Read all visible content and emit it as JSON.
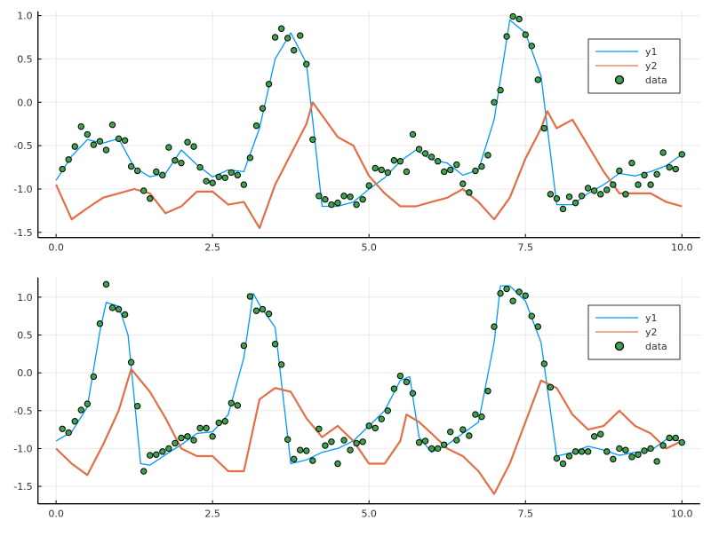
{
  "colors": {
    "y1": "#009af9",
    "y2": "#e26f46",
    "data": "#3da44d",
    "grid": "#ebebeb",
    "axis": "#000000"
  },
  "chart_data": [
    {
      "type": "line+scatter",
      "xlim": [
        -0.29,
        10.29
      ],
      "ylim": [
        -1.56,
        1.05
      ],
      "grid": true,
      "legend_placement": "top-right",
      "xticks": [
        0,
        2.5,
        5,
        7.5,
        10
      ],
      "xtick_labels": [
        "0.0",
        "2.5",
        "5.0",
        "7.5",
        "10.0"
      ],
      "yticks": [
        -1.5,
        -1.0,
        -0.5,
        0.0,
        0.5,
        1.0
      ],
      "ytick_labels": [
        "-1.5",
        "-1.0",
        "-0.5",
        "0.0",
        "0.5",
        "1.0"
      ],
      "legend": [
        "y1",
        "y2",
        "data"
      ],
      "series": [
        {
          "name": "y1",
          "type": "line",
          "x": [
            0,
            0.25,
            0.5,
            0.75,
            1.0,
            1.25,
            1.5,
            1.75,
            2.0,
            2.25,
            2.5,
            2.75,
            3.0,
            3.25,
            3.5,
            3.75,
            4.0,
            4.25,
            4.5,
            4.75,
            5.0,
            5.25,
            5.5,
            5.75,
            6.0,
            6.25,
            6.5,
            6.75,
            7.0,
            7.25,
            7.5,
            7.75,
            8.0,
            8.25,
            8.5,
            8.75,
            9.0,
            9.25,
            9.5,
            9.75,
            10.0
          ],
          "y": [
            -0.9,
            -0.62,
            -0.43,
            -0.47,
            -0.42,
            -0.75,
            -0.86,
            -0.82,
            -0.55,
            -0.72,
            -0.86,
            -0.78,
            -0.8,
            -0.3,
            0.5,
            0.8,
            0.45,
            -1.2,
            -1.2,
            -1.15,
            -1.0,
            -0.87,
            -0.68,
            -0.55,
            -0.66,
            -0.7,
            -0.84,
            -0.78,
            -0.2,
            0.95,
            0.8,
            0.3,
            -1.18,
            -1.18,
            -1.05,
            -0.95,
            -0.82,
            -0.85,
            -0.8,
            -0.73,
            -0.6
          ]
        },
        {
          "name": "y2",
          "type": "line",
          "x": [
            0,
            0.25,
            0.5,
            0.75,
            1.0,
            1.25,
            1.5,
            1.75,
            2.0,
            2.25,
            2.5,
            2.75,
            3.0,
            3.25,
            3.5,
            3.75,
            4.0,
            4.1,
            4.25,
            4.5,
            4.75,
            5.0,
            5.25,
            5.5,
            5.75,
            6.0,
            6.25,
            6.5,
            6.75,
            7.0,
            7.25,
            7.5,
            7.75,
            7.85,
            8.0,
            8.25,
            8.5,
            8.75,
            9.0,
            9.25,
            9.5,
            9.75,
            10.0
          ],
          "y": [
            -0.95,
            -1.35,
            -1.22,
            -1.1,
            -1.05,
            -1.0,
            -1.05,
            -1.28,
            -1.2,
            -1.03,
            -1.03,
            -1.18,
            -1.15,
            -1.45,
            -0.95,
            -0.6,
            -0.25,
            0.0,
            -0.15,
            -0.4,
            -0.5,
            -0.85,
            -1.05,
            -1.2,
            -1.2,
            -1.15,
            -1.1,
            -1.0,
            -1.15,
            -1.35,
            -1.1,
            -0.65,
            -0.3,
            -0.1,
            -0.3,
            -0.2,
            -0.5,
            -0.8,
            -1.05,
            -1.05,
            -1.05,
            -1.15,
            -1.2
          ]
        },
        {
          "name": "data",
          "type": "scatter",
          "y": [
            -0.77,
            -0.66,
            -0.51,
            -0.28,
            -0.37,
            -0.49,
            -0.45,
            -0.55,
            -0.26,
            -0.42,
            -0.44,
            -0.74,
            -0.79,
            -1.02,
            -1.11,
            -0.8,
            -0.84,
            -0.52,
            -0.67,
            -0.7,
            -0.46,
            -0.51,
            -0.75,
            -0.91,
            -0.93,
            -0.86,
            -0.87,
            -0.81,
            -0.84,
            -0.95,
            -0.64,
            -0.27,
            -0.07,
            0.21,
            0.75,
            0.85,
            0.74,
            0.6,
            0.77,
            0.44,
            -0.43,
            -1.08,
            -1.12,
            -1.18,
            -1.16,
            -1.08,
            -1.09,
            -1.18,
            -1.12,
            -0.96,
            -0.76,
            -0.78,
            -0.81,
            -0.67,
            -0.68,
            -0.8,
            -0.37,
            -0.54,
            -0.59,
            -0.63,
            -0.68,
            -0.8,
            -0.78,
            -0.72,
            -0.94,
            -1.04,
            -0.79,
            -0.74,
            -0.61,
            0.0,
            0.14,
            0.76,
            0.99,
            0.96,
            0.78,
            0.65,
            0.26,
            -0.3,
            -1.06,
            -1.11,
            -1.23,
            -1.09,
            -1.16,
            -1.08,
            -0.99,
            -1.02,
            -1.06,
            -1.01,
            -0.95,
            -0.79,
            -1.06,
            -0.7,
            -0.95,
            -0.84,
            -0.95,
            -0.83,
            -0.58,
            -0.75,
            -0.77,
            -0.6
          ]
        }
      ]
    },
    {
      "type": "line+scatter",
      "xlim": [
        -0.29,
        10.29
      ],
      "ylim": [
        -1.73,
        1.26
      ],
      "grid": true,
      "legend_placement": "top-right",
      "xticks": [
        0,
        2.5,
        5,
        7.5,
        10
      ],
      "xtick_labels": [
        "0.0",
        "2.5",
        "5.0",
        "7.5",
        "10.0"
      ],
      "yticks": [
        -1.5,
        -1.0,
        -0.5,
        0.0,
        0.5,
        1.0
      ],
      "ytick_labels": [
        "-1.5",
        "-1.0",
        "-0.5",
        "0.0",
        "0.5",
        "1.0"
      ],
      "legend": [
        "y1",
        "y2",
        "data"
      ],
      "series": [
        {
          "name": "y1",
          "type": "line",
          "x": [
            0,
            0.25,
            0.5,
            0.7,
            0.8,
            1.0,
            1.15,
            1.35,
            1.5,
            1.75,
            2.0,
            2.25,
            2.5,
            2.75,
            3.0,
            3.15,
            3.25,
            3.5,
            3.75,
            4.0,
            4.25,
            4.5,
            4.75,
            5.0,
            5.25,
            5.5,
            5.65,
            5.8,
            6.0,
            6.25,
            6.5,
            6.75,
            7.0,
            7.1,
            7.25,
            7.5,
            7.75,
            8.0,
            8.25,
            8.5,
            8.75,
            9.0,
            9.25,
            9.5,
            9.75,
            10.0
          ],
          "y": [
            -0.9,
            -0.78,
            -0.45,
            0.55,
            0.93,
            0.88,
            0.5,
            -1.2,
            -1.22,
            -1.08,
            -0.95,
            -0.8,
            -0.78,
            -0.55,
            0.2,
            1.05,
            0.9,
            0.6,
            -1.2,
            -1.15,
            -1.05,
            -1.0,
            -0.9,
            -0.7,
            -0.5,
            -0.1,
            -0.05,
            -0.85,
            -1.05,
            -0.95,
            -0.8,
            -0.65,
            0.4,
            1.15,
            1.15,
            0.95,
            0.4,
            -1.1,
            -1.05,
            -0.97,
            -1.02,
            -1.09,
            -1.05,
            -1.03,
            -0.88,
            -0.9
          ]
        },
        {
          "name": "y2",
          "type": "line",
          "x": [
            0,
            0.25,
            0.5,
            0.75,
            1.0,
            1.2,
            1.5,
            1.75,
            2.0,
            2.25,
            2.5,
            2.75,
            3.0,
            3.25,
            3.5,
            3.75,
            4.0,
            4.25,
            4.5,
            4.75,
            5.0,
            5.25,
            5.5,
            5.6,
            5.8,
            6.0,
            6.25,
            6.5,
            6.75,
            7.0,
            7.25,
            7.5,
            7.75,
            8.0,
            8.25,
            8.5,
            8.75,
            9.0,
            9.25,
            9.5,
            9.75,
            10.0
          ],
          "y": [
            -1.0,
            -1.2,
            -1.35,
            -0.95,
            -0.5,
            0.05,
            -0.25,
            -0.6,
            -1.0,
            -1.1,
            -1.1,
            -1.3,
            -1.3,
            -0.35,
            -0.2,
            -0.25,
            -0.6,
            -0.85,
            -0.7,
            -0.9,
            -1.2,
            -1.2,
            -0.9,
            -0.55,
            -0.65,
            -0.8,
            -1.0,
            -1.1,
            -1.3,
            -1.6,
            -1.2,
            -0.65,
            -0.1,
            -0.2,
            -0.55,
            -0.75,
            -0.7,
            -0.5,
            -0.7,
            -0.8,
            -1.0,
            -0.9
          ]
        },
        {
          "name": "data",
          "type": "scatter",
          "y": [
            -0.74,
            -0.79,
            -0.64,
            -0.49,
            -0.41,
            -0.05,
            0.65,
            1.17,
            0.86,
            0.84,
            0.77,
            0.14,
            -0.44,
            -1.3,
            -1.09,
            -1.08,
            -1.04,
            -1.0,
            -0.93,
            -0.86,
            -0.84,
            -0.89,
            -0.73,
            -0.73,
            -0.84,
            -0.66,
            -0.64,
            -0.4,
            -0.43,
            0.36,
            1.01,
            0.82,
            0.84,
            0.78,
            0.38,
            0.11,
            -0.88,
            -1.14,
            -1.02,
            -1.03,
            -1.16,
            -0.74,
            -0.96,
            -0.91,
            -1.2,
            -0.89,
            -1.02,
            -0.93,
            -0.91,
            -0.7,
            -0.73,
            -0.61,
            -0.5,
            -0.21,
            -0.04,
            -0.12,
            -0.27,
            -0.92,
            -0.9,
            -1.0,
            -1.0,
            -0.95,
            -0.78,
            -0.89,
            -0.75,
            -0.83,
            -0.55,
            -0.58,
            -0.24,
            0.61,
            1.05,
            1.11,
            0.95,
            1.07,
            1.02,
            0.75,
            0.61,
            0.12,
            -0.19,
            -1.13,
            -1.2,
            -1.1,
            -1.04,
            -1.04,
            -1.04,
            -0.84,
            -0.81,
            -1.04,
            -1.14,
            -1.0,
            -1.02,
            -1.11,
            -1.08,
            -1.03,
            -1.0,
            -1.17,
            -0.96,
            -0.86,
            -0.86,
            -0.92
          ]
        }
      ]
    }
  ]
}
